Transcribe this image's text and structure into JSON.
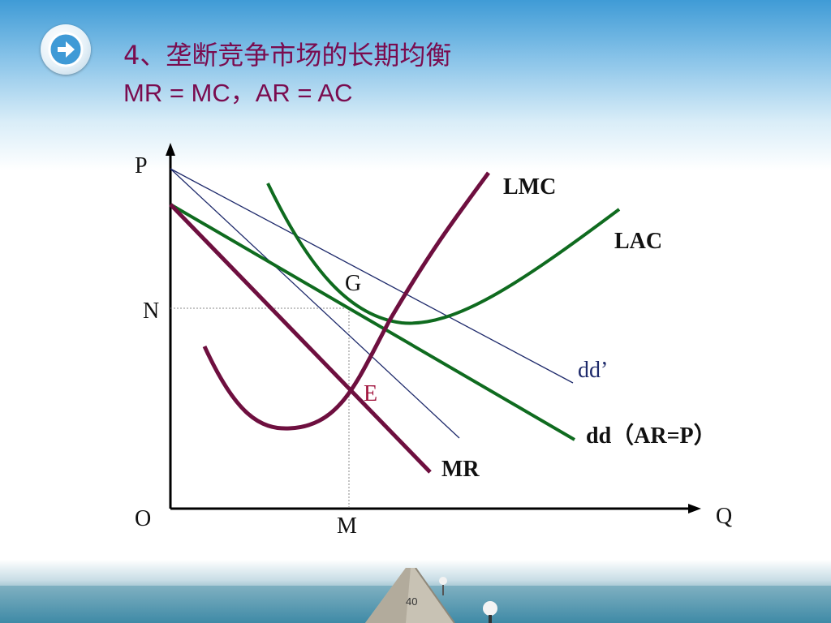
{
  "slide": {
    "title": "4、垄断竞争市场的长期均衡",
    "subtitle": "MR = MC，AR = AC",
    "page_number": "40"
  },
  "nav": {
    "icon": "arrow-right-circle-icon"
  },
  "diagram": {
    "axis_labels": {
      "y": "P",
      "x": "Q",
      "origin": "O"
    },
    "points": {
      "N": "N",
      "M": "M",
      "G": "G",
      "E": "E"
    },
    "curves": {
      "LMC": "LMC",
      "LAC": "LAC",
      "dd_prime": "dd’",
      "dd": "dd（AR=P）",
      "MR": "MR"
    },
    "colors": {
      "maroon": "#6e0f3f",
      "green": "#0f6b1f",
      "navy": "#1e2a6b",
      "red_label": "#a0103a",
      "title": "#7a0c4f"
    }
  }
}
